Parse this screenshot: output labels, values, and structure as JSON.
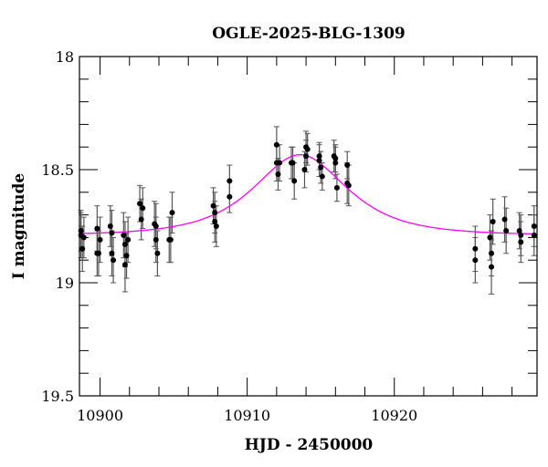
{
  "chart_data": {
    "type": "scatter",
    "title": "OGLE-2025-BLG-1309",
    "xlabel": "HJD - 2450000",
    "ylabel": "I magnitude",
    "xlim": [
      10898.6,
      10929.7
    ],
    "ylim": [
      19.5,
      18.0
    ],
    "y_inverted": true,
    "xticks": [
      10900,
      10910,
      10920
    ],
    "xtick_labels": [
      "10900",
      "10910",
      "10920"
    ],
    "yticks": [
      18,
      18.5,
      19,
      19.5
    ],
    "ytick_labels": [
      "18",
      "18.5",
      "19",
      "19.5"
    ],
    "grid": false,
    "legend": "none",
    "colors": {
      "points": "#000000",
      "errorbars": "#555555",
      "model": "#ff00ff"
    },
    "model": {
      "type": "point-lens",
      "t0": 10913.6,
      "u0": 0.94,
      "tE": 3.95,
      "baseline_mag": 18.79
    },
    "points": [
      {
        "x": 10898.7,
        "y": 18.77,
        "err": 0.09
      },
      {
        "x": 10898.7,
        "y": 18.79,
        "err": 0.1
      },
      {
        "x": 10898.8,
        "y": 18.85,
        "err": 0.1
      },
      {
        "x": 10898.9,
        "y": 18.8,
        "err": 0.09
      },
      {
        "x": 10899.8,
        "y": 18.76,
        "err": 0.1
      },
      {
        "x": 10899.8,
        "y": 18.87,
        "err": 0.1
      },
      {
        "x": 10899.9,
        "y": 18.87,
        "err": 0.1
      },
      {
        "x": 10900.0,
        "y": 18.81,
        "err": 0.1
      },
      {
        "x": 10900.7,
        "y": 18.75,
        "err": 0.09
      },
      {
        "x": 10900.8,
        "y": 18.78,
        "err": 0.1
      },
      {
        "x": 10900.8,
        "y": 18.87,
        "err": 0.1
      },
      {
        "x": 10900.9,
        "y": 18.9,
        "err": 0.1
      },
      {
        "x": 10901.6,
        "y": 18.79,
        "err": 0.1
      },
      {
        "x": 10901.7,
        "y": 18.83,
        "err": 0.1
      },
      {
        "x": 10901.7,
        "y": 18.92,
        "err": 0.12
      },
      {
        "x": 10901.8,
        "y": 18.88,
        "err": 0.1
      },
      {
        "x": 10901.9,
        "y": 18.81,
        "err": 0.1
      },
      {
        "x": 10902.7,
        "y": 18.65,
        "err": 0.08
      },
      {
        "x": 10902.8,
        "y": 18.72,
        "err": 0.09
      },
      {
        "x": 10902.9,
        "y": 18.67,
        "err": 0.09
      },
      {
        "x": 10903.7,
        "y": 18.74,
        "err": 0.1
      },
      {
        "x": 10903.8,
        "y": 18.75,
        "err": 0.1
      },
      {
        "x": 10903.8,
        "y": 18.81,
        "err": 0.1
      },
      {
        "x": 10903.9,
        "y": 18.87,
        "err": 0.1
      },
      {
        "x": 10904.7,
        "y": 18.81,
        "err": 0.1
      },
      {
        "x": 10904.8,
        "y": 18.81,
        "err": 0.1
      },
      {
        "x": 10904.9,
        "y": 18.69,
        "err": 0.09
      },
      {
        "x": 10907.7,
        "y": 18.66,
        "err": 0.08
      },
      {
        "x": 10907.8,
        "y": 18.69,
        "err": 0.09
      },
      {
        "x": 10907.8,
        "y": 18.73,
        "err": 0.09
      },
      {
        "x": 10907.9,
        "y": 18.75,
        "err": 0.09
      },
      {
        "x": 10908.8,
        "y": 18.55,
        "err": 0.07
      },
      {
        "x": 10908.8,
        "y": 18.62,
        "err": 0.07
      },
      {
        "x": 10912.0,
        "y": 18.39,
        "err": 0.08
      },
      {
        "x": 10912.0,
        "y": 18.47,
        "err": 0.08
      },
      {
        "x": 10912.1,
        "y": 18.52,
        "err": 0.07
      },
      {
        "x": 10912.2,
        "y": 18.47,
        "err": 0.08
      },
      {
        "x": 10913.0,
        "y": 18.47,
        "err": 0.07
      },
      {
        "x": 10913.1,
        "y": 18.47,
        "err": 0.07
      },
      {
        "x": 10913.2,
        "y": 18.55,
        "err": 0.08
      },
      {
        "x": 10913.9,
        "y": 18.5,
        "err": 0.08
      },
      {
        "x": 10914.0,
        "y": 18.44,
        "err": 0.07
      },
      {
        "x": 10914.0,
        "y": 18.4,
        "err": 0.07
      },
      {
        "x": 10914.1,
        "y": 18.41,
        "err": 0.07
      },
      {
        "x": 10914.9,
        "y": 18.44,
        "err": 0.06
      },
      {
        "x": 10914.9,
        "y": 18.46,
        "err": 0.07
      },
      {
        "x": 10915.0,
        "y": 18.49,
        "err": 0.07
      },
      {
        "x": 10915.1,
        "y": 18.53,
        "err": 0.06
      },
      {
        "x": 10915.9,
        "y": 18.44,
        "err": 0.07
      },
      {
        "x": 10916.0,
        "y": 18.45,
        "err": 0.06
      },
      {
        "x": 10916.0,
        "y": 18.47,
        "err": 0.07
      },
      {
        "x": 10916.1,
        "y": 18.58,
        "err": 0.06
      },
      {
        "x": 10916.8,
        "y": 18.48,
        "err": 0.06
      },
      {
        "x": 10916.8,
        "y": 18.56,
        "err": 0.09
      },
      {
        "x": 10916.9,
        "y": 18.57,
        "err": 0.09
      },
      {
        "x": 10925.5,
        "y": 18.85,
        "err": 0.1
      },
      {
        "x": 10925.5,
        "y": 18.9,
        "err": 0.1
      },
      {
        "x": 10926.5,
        "y": 18.8,
        "err": 0.1
      },
      {
        "x": 10926.6,
        "y": 18.87,
        "err": 0.1
      },
      {
        "x": 10926.6,
        "y": 18.93,
        "err": 0.12
      },
      {
        "x": 10926.7,
        "y": 18.73,
        "err": 0.1
      },
      {
        "x": 10927.5,
        "y": 18.72,
        "err": 0.1
      },
      {
        "x": 10927.6,
        "y": 18.77,
        "err": 0.1
      },
      {
        "x": 10928.5,
        "y": 18.77,
        "err": 0.08
      },
      {
        "x": 10928.6,
        "y": 18.79,
        "err": 0.09
      },
      {
        "x": 10928.6,
        "y": 18.82,
        "err": 0.09
      },
      {
        "x": 10929.5,
        "y": 18.79,
        "err": 0.09
      },
      {
        "x": 10929.5,
        "y": 18.75,
        "err": 0.09
      }
    ]
  }
}
